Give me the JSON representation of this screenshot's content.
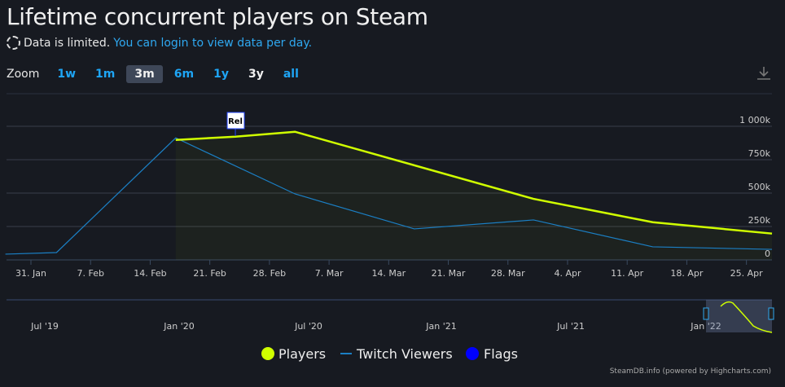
{
  "title": "Lifetime concurrent players on Steam",
  "notice": {
    "text": "Data is limited.",
    "link": "You can login to view data per day."
  },
  "zoom": {
    "label": "Zoom",
    "buttons": [
      "1w",
      "1m",
      "3m",
      "6m",
      "1y",
      "3y",
      "all"
    ],
    "selected": "3m"
  },
  "credits": "SteamDB.info (powered by Highcharts.com)",
  "chart_data": {
    "type": "line",
    "title": "Lifetime concurrent players on Steam",
    "x_range": [
      "2022-01-28",
      "2022-04-28"
    ],
    "x_ticks": [
      "31. Jan",
      "7. Feb",
      "14. Feb",
      "21. Feb",
      "28. Feb",
      "7. Mar",
      "14. Mar",
      "21. Mar",
      "28. Mar",
      "4. Apr",
      "11. Apr",
      "18. Apr",
      "25. Apr"
    ],
    "x_tick_dates": [
      "2022-01-31",
      "2022-02-07",
      "2022-02-14",
      "2022-02-21",
      "2022-02-28",
      "2022-03-07",
      "2022-03-14",
      "2022-03-21",
      "2022-03-28",
      "2022-04-04",
      "2022-04-11",
      "2022-04-18",
      "2022-04-25"
    ],
    "y_ticks": [
      "0",
      "250k",
      "500k",
      "750k",
      "1 000k"
    ],
    "ylim": [
      0,
      1000000
    ],
    "grid": true,
    "legend": "bottom",
    "series": [
      {
        "name": "Players",
        "color": "#d0ff00",
        "points": [
          [
            "2022-02-17",
            898000
          ],
          [
            "2022-02-24",
            922000
          ],
          [
            "2022-03-03",
            959000
          ],
          [
            "2022-03-31",
            457000
          ],
          [
            "2022-04-14",
            282000
          ],
          [
            "2022-04-28",
            197000
          ]
        ]
      },
      {
        "name": "Twitch Viewers",
        "color": "#1b7fc4",
        "points": [
          [
            "2022-01-28",
            43000
          ],
          [
            "2022-02-03",
            55000
          ],
          [
            "2022-02-17",
            913000
          ],
          [
            "2022-03-03",
            494000
          ],
          [
            "2022-03-17",
            232000
          ],
          [
            "2022-03-31",
            299000
          ],
          [
            "2022-04-14",
            98000
          ],
          [
            "2022-04-28",
            79000
          ]
        ]
      },
      {
        "name": "Flags",
        "color": "#0000ff",
        "flags": [
          {
            "date": "2022-02-24",
            "label": "Rel"
          }
        ]
      }
    ],
    "navigator": {
      "ticks": [
        "Jul '19",
        "Jan '20",
        "Jul '20",
        "Jan '21",
        "Jul '21",
        "Jan '22"
      ]
    }
  }
}
